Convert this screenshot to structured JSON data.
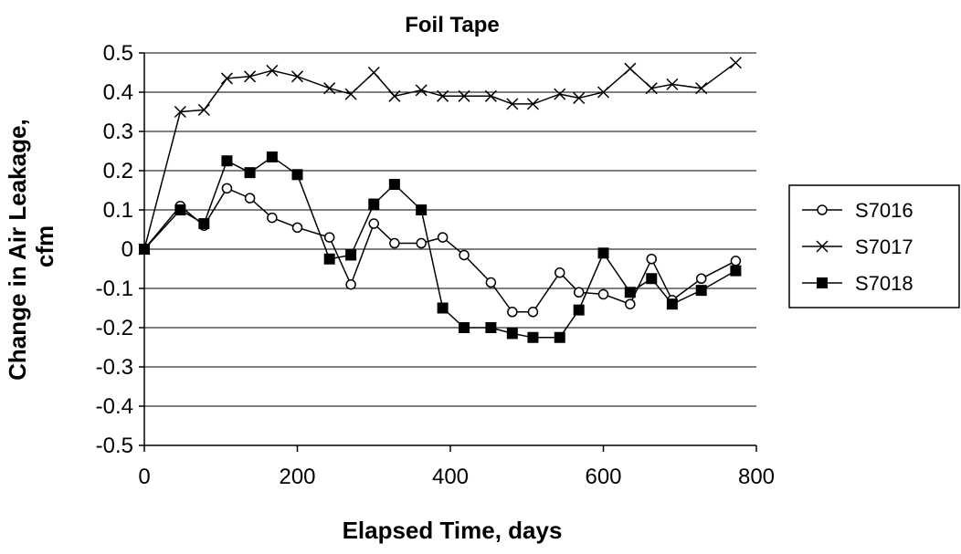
{
  "chart_data": {
    "type": "line",
    "title": "Foil Tape",
    "xlabel": "Elapsed Time, days",
    "ylabel": "Change in Air Leakage, cfm",
    "xlim": [
      0,
      800
    ],
    "ylim": [
      -0.5,
      0.5
    ],
    "xticks": [
      0,
      200,
      400,
      600,
      800
    ],
    "yticks": [
      0.5,
      0.4,
      0.3,
      0.2,
      0.1,
      0,
      -0.1,
      -0.2,
      -0.3,
      -0.4,
      -0.5
    ],
    "xtick_labels": [
      "0",
      "200",
      "400",
      "600",
      "800"
    ],
    "ytick_labels": [
      "0.5",
      "0.4",
      "0.3",
      "0.2",
      "0.1",
      "0",
      "-0.1",
      "-0.2",
      "-0.3",
      "-0.4",
      "-0.5"
    ],
    "grid": "horizontal",
    "legend_position": "right",
    "series": [
      {
        "name": "S7016",
        "marker": "circle-open",
        "x": [
          0,
          47,
          78,
          108,
          138,
          167,
          200,
          242,
          270,
          300,
          327,
          362,
          390,
          418,
          453,
          481,
          508,
          543,
          568,
          600,
          635,
          663,
          690,
          728,
          773
        ],
        "y": [
          0,
          0.11,
          0.06,
          0.155,
          0.13,
          0.08,
          0.055,
          0.03,
          -0.09,
          0.065,
          0.015,
          0.015,
          0.03,
          -0.015,
          -0.085,
          -0.16,
          -0.16,
          -0.06,
          -0.11,
          -0.115,
          -0.14,
          -0.025,
          -0.13,
          -0.075,
          -0.03
        ]
      },
      {
        "name": "S7017",
        "marker": "x",
        "x": [
          0,
          47,
          78,
          108,
          138,
          167,
          200,
          242,
          270,
          300,
          327,
          362,
          390,
          418,
          453,
          481,
          508,
          543,
          568,
          600,
          635,
          663,
          690,
          728,
          773
        ],
        "y": [
          0,
          0.35,
          0.355,
          0.435,
          0.44,
          0.455,
          0.44,
          0.41,
          0.395,
          0.45,
          0.39,
          0.405,
          0.39,
          0.39,
          0.39,
          0.37,
          0.37,
          0.395,
          0.385,
          0.4,
          0.46,
          0.41,
          0.42,
          0.41,
          0.475
        ]
      },
      {
        "name": "S7018",
        "marker": "square-filled",
        "x": [
          0,
          47,
          78,
          108,
          138,
          167,
          200,
          242,
          270,
          300,
          327,
          362,
          390,
          418,
          453,
          481,
          508,
          543,
          568,
          600,
          635,
          663,
          690,
          728,
          773
        ],
        "y": [
          0,
          0.1,
          0.065,
          0.225,
          0.195,
          0.235,
          0.19,
          -0.025,
          -0.015,
          0.115,
          0.165,
          0.1,
          -0.15,
          -0.2,
          -0.2,
          -0.215,
          -0.225,
          -0.225,
          -0.155,
          -0.01,
          -0.11,
          -0.075,
          -0.14,
          -0.105,
          -0.055
        ]
      }
    ]
  }
}
